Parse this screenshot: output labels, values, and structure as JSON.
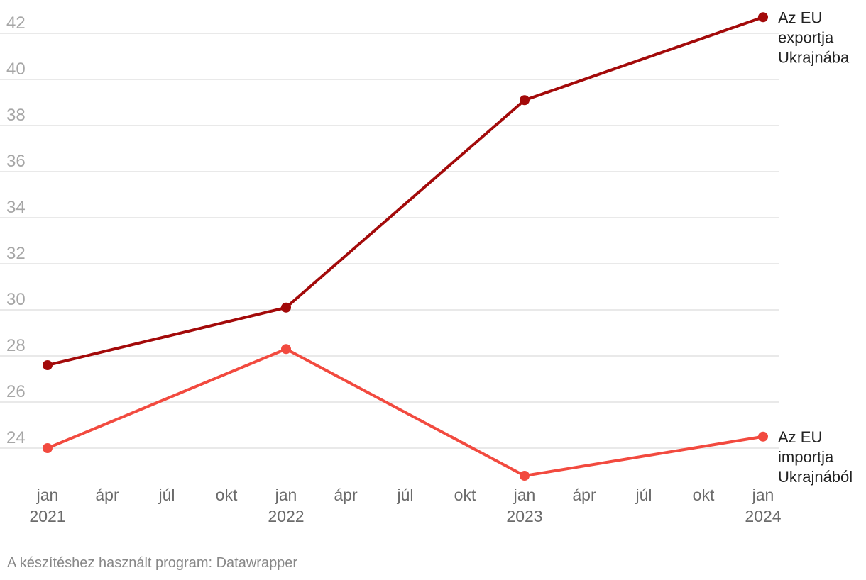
{
  "chart_data": {
    "type": "line",
    "x": [
      "2021-01",
      "2022-01",
      "2023-01",
      "2024-01"
    ],
    "ylim": [
      22.8,
      42.8
    ],
    "yticks": [
      24,
      26,
      28,
      30,
      32,
      34,
      36,
      38,
      40,
      42
    ],
    "grid": true,
    "xtick_labels": [
      {
        "month": "jan",
        "year": "2021",
        "m": 0
      },
      {
        "month": "ápr",
        "year": "",
        "m": 3
      },
      {
        "month": "júl",
        "year": "",
        "m": 6
      },
      {
        "month": "okt",
        "year": "",
        "m": 9
      },
      {
        "month": "jan",
        "year": "2022",
        "m": 12
      },
      {
        "month": "ápr",
        "year": "",
        "m": 15
      },
      {
        "month": "júl",
        "year": "",
        "m": 18
      },
      {
        "month": "okt",
        "year": "",
        "m": 21
      },
      {
        "month": "jan",
        "year": "2023",
        "m": 24
      },
      {
        "month": "ápr",
        "year": "",
        "m": 27
      },
      {
        "month": "júl",
        "year": "",
        "m": 30
      },
      {
        "month": "okt",
        "year": "",
        "m": 33
      },
      {
        "month": "jan",
        "year": "2024",
        "m": 36
      }
    ],
    "series": [
      {
        "name": "Az EU exportja Ukrajnába",
        "label_lines": [
          "Az EU",
          "exportja",
          "Ukrajnába"
        ],
        "color": "#a30a0a",
        "values": [
          27.6,
          30.1,
          39.1,
          42.7
        ]
      },
      {
        "name": "Az EU importja Ukrajnából",
        "label_lines": [
          "Az EU",
          "importja",
          "Ukrajnából"
        ],
        "color": "#f24a3f",
        "values": [
          24.0,
          28.3,
          22.8,
          24.5
        ]
      }
    ]
  },
  "footer": {
    "credit": "A készítéshez használt program: Datawrapper"
  }
}
